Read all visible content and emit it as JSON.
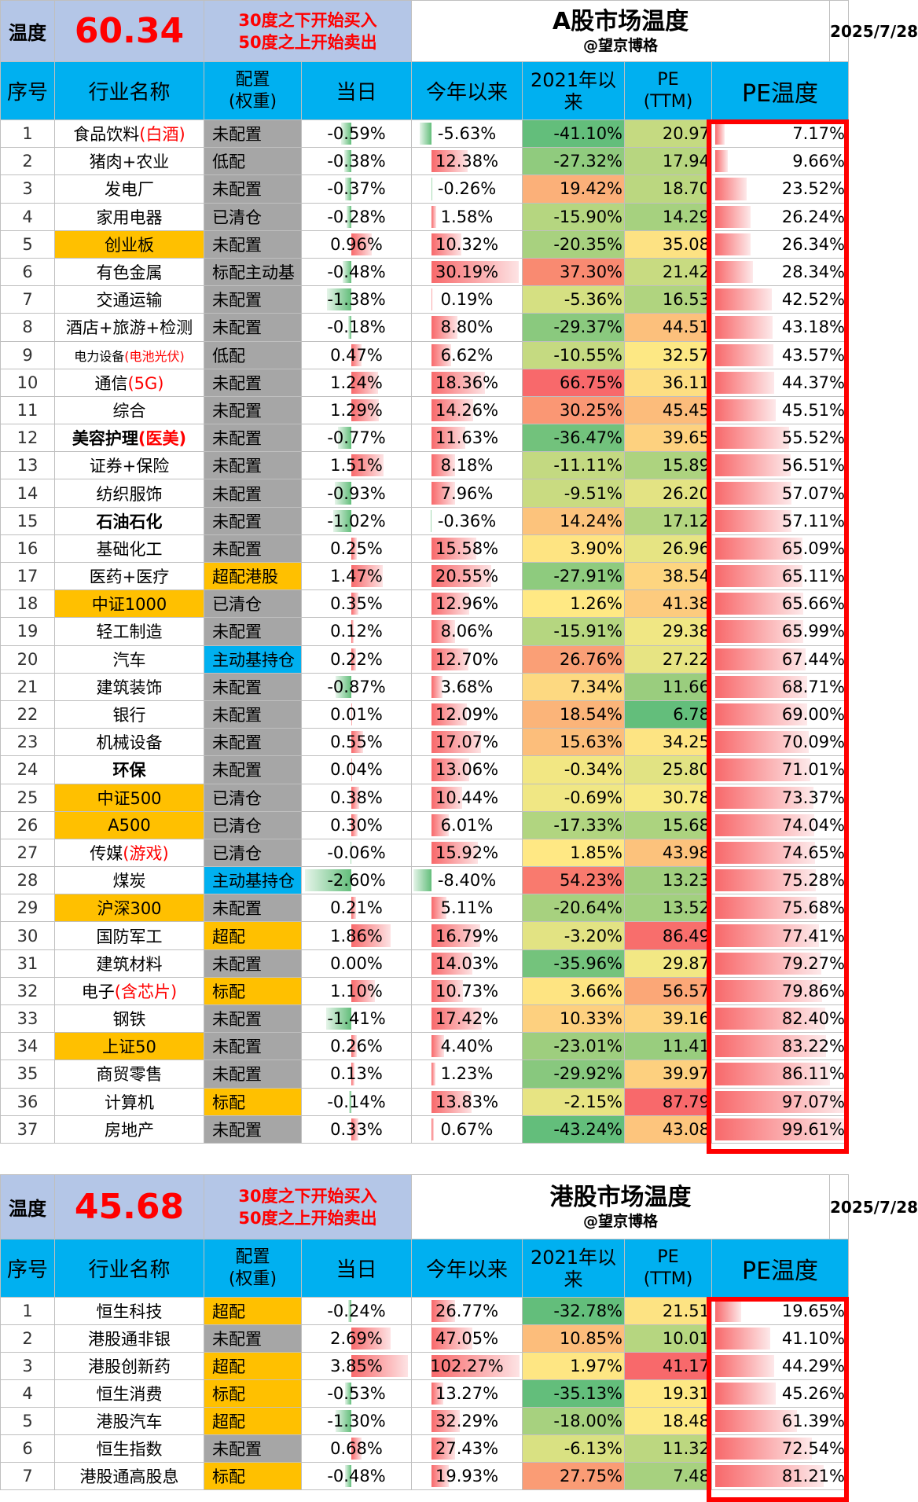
{
  "sections": [
    {
      "top": {
        "temp_label": "温度",
        "temp_value": "60.34",
        "note_line1": "30度之下开始买入",
        "note_line2": "50度之上开始卖出",
        "title": "A股市场温度",
        "subtitle": "@望京博格",
        "date": "2025/7/28"
      },
      "headers": {
        "idx": "序号",
        "name": "行业名称",
        "alloc": "配置\n(权重)",
        "day": "当日",
        "ytd": "今年以来",
        "y2021": "2021年以来",
        "pe": "PE\n(TTM)",
        "pe_temp": "PE温度"
      },
      "rows": [
        {
          "idx": "1",
          "name": "食品饮料",
          "name_red": "(白酒)",
          "alloc": "未配置",
          "day": "-0.59%",
          "day_v": -0.59,
          "ytd": "-5.63%",
          "ytd_v": -5.63,
          "y2021": "-41.10%",
          "y2021_c": "#63be7b",
          "pe": "20.97",
          "pe_c": "#c5da81",
          "pet": "7.17%",
          "pet_v": 7.17
        },
        {
          "idx": "2",
          "name": "猪肉+农业",
          "alloc": "低配",
          "day": "-0.38%",
          "day_v": -0.38,
          "ytd": "12.38%",
          "ytd_v": 12.38,
          "y2021": "-27.32%",
          "y2021_c": "#90cb7e",
          "pe": "17.94",
          "pe_c": "#b7d680",
          "pet": "9.66%",
          "pet_v": 9.66
        },
        {
          "idx": "3",
          "name": "发电厂",
          "alloc": "未配置",
          "day": "-0.37%",
          "day_v": -0.37,
          "ytd": "-0.26%",
          "ytd_v": -0.26,
          "y2021": "19.42%",
          "y2021_c": "#fbb079",
          "pe": "18.70",
          "pe_c": "#bbd780",
          "pet": "23.52%",
          "pet_v": 23.52
        },
        {
          "idx": "4",
          "name": "家用电器",
          "alloc": "已清仓",
          "day": "-0.28%",
          "day_v": -0.28,
          "ytd": "1.58%",
          "ytd_v": 1.58,
          "y2021": "-15.90%",
          "y2021_c": "#b5d680",
          "pe": "14.29",
          "pe_c": "#a6d17f",
          "pet": "26.24%",
          "pet_v": 26.24
        },
        {
          "idx": "5",
          "name": "创业板",
          "hl": true,
          "alloc": "未配置",
          "day": "0.96%",
          "day_v": 0.96,
          "ytd": "10.32%",
          "ytd_v": 10.32,
          "y2021": "-20.35%",
          "y2021_c": "#a8d17f",
          "pe": "35.08",
          "pe_c": "#fde283",
          "pet": "26.34%",
          "pet_v": 26.34
        },
        {
          "idx": "6",
          "name": "有色金属",
          "alloc": "标配主动基",
          "day": "-0.48%",
          "day_v": -0.48,
          "ytd": "30.19%",
          "ytd_v": 30.19,
          "y2021": "37.30%",
          "y2021_c": "#f98a71",
          "pe": "21.42",
          "pe_c": "#c8db81",
          "pet": "28.34%",
          "pet_v": 28.34
        },
        {
          "idx": "7",
          "name": "交通运输",
          "alloc": "未配置",
          "day": "-1.38%",
          "day_v": -1.38,
          "ytd": "0.19%",
          "ytd_v": 0.19,
          "y2021": "-5.36%",
          "y2021_c": "#d5e082",
          "pe": "16.53",
          "pe_c": "#b0d47f",
          "pet": "42.52%",
          "pet_v": 42.52
        },
        {
          "idx": "8",
          "name": "酒店+旅游+检测",
          "alloc": "未配置",
          "day": "-0.18%",
          "day_v": -0.18,
          "ytd": "8.80%",
          "ytd_v": 8.8,
          "y2021": "-29.37%",
          "y2021_c": "#8ac97e",
          "pe": "44.51",
          "pe_c": "#fcc07c",
          "pet": "43.18%",
          "pet_v": 43.18
        },
        {
          "idx": "9",
          "name": "电力设备",
          "name_red": "(电池光伏)",
          "tiny": true,
          "alloc": "低配",
          "day": "0.47%",
          "day_v": 0.47,
          "ytd": "6.62%",
          "ytd_v": 6.62,
          "y2021": "-10.55%",
          "y2021_c": "#c5da81",
          "pe": "32.57",
          "pe_c": "#fde884",
          "pet": "43.57%",
          "pet_v": 43.57
        },
        {
          "idx": "10",
          "name": "通信",
          "name_red": "(5G)",
          "alloc": "未配置",
          "day": "1.24%",
          "day_v": 1.24,
          "ytd": "18.36%",
          "ytd_v": 18.36,
          "y2021": "66.75%",
          "y2021_c": "#f8696b",
          "pe": "36.11",
          "pe_c": "#fdde82",
          "pet": "44.37%",
          "pet_v": 44.37
        },
        {
          "idx": "11",
          "name": "综合",
          "alloc": "未配置",
          "day": "1.29%",
          "day_v": 1.29,
          "ytd": "14.26%",
          "ytd_v": 14.26,
          "y2021": "30.25%",
          "y2021_c": "#fa9774",
          "pe": "45.45",
          "pe_c": "#fcbc7b",
          "pet": "45.51%",
          "pet_v": 45.51
        },
        {
          "idx": "12",
          "name": "美容护理",
          "name_red": "(医美)",
          "bold": true,
          "alloc": "未配置",
          "day": "-0.77%",
          "day_v": -0.77,
          "ytd": "11.63%",
          "ytd_v": 11.63,
          "y2021": "-36.47%",
          "y2021_c": "#72c27c",
          "pe": "39.65",
          "pe_c": "#fdd17f",
          "pet": "55.52%",
          "pet_v": 55.52
        },
        {
          "idx": "13",
          "name": "证券+保险",
          "alloc": "未配置",
          "day": "1.51%",
          "day_v": 1.51,
          "ytd": "8.18%",
          "ytd_v": 8.18,
          "y2021": "-11.11%",
          "y2021_c": "#c3d981",
          "pe": "15.89",
          "pe_c": "#add37f",
          "pet": "56.51%",
          "pet_v": 56.51
        },
        {
          "idx": "14",
          "name": "纺织服饰",
          "alloc": "未配置",
          "day": "-0.93%",
          "day_v": -0.93,
          "ytd": "7.96%",
          "ytd_v": 7.96,
          "y2021": "-9.51%",
          "y2021_c": "#c9db81",
          "pe": "26.20",
          "pe_c": "#e3e383",
          "pet": "57.07%",
          "pet_v": 57.07
        },
        {
          "idx": "15",
          "name": "石油石化",
          "bold": true,
          "alloc": "未配置",
          "day": "-1.02%",
          "day_v": -1.02,
          "ytd": "-0.36%",
          "ytd_v": -0.36,
          "y2021": "14.24%",
          "y2021_c": "#fcc37c",
          "pe": "17.12",
          "pe_c": "#b3d580",
          "pet": "57.11%",
          "pet_v": 57.11
        },
        {
          "idx": "16",
          "name": "基础化工",
          "alloc": "未配置",
          "day": "0.25%",
          "day_v": 0.25,
          "ytd": "15.58%",
          "ytd_v": 15.58,
          "y2021": "3.90%",
          "y2021_c": "#fee482",
          "pe": "26.96",
          "pe_c": "#e6e483",
          "pet": "65.09%",
          "pet_v": 65.09
        },
        {
          "idx": "17",
          "name": "医药+医疗",
          "alloc": "超配港股",
          "alloc_c": "orange",
          "day": "1.47%",
          "day_v": 1.47,
          "ytd": "20.55%",
          "ytd_v": 20.55,
          "y2021": "-27.91%",
          "y2021_c": "#8ecb7e",
          "pe": "38.54",
          "pe_c": "#fdd580",
          "pet": "65.11%",
          "pet_v": 65.11
        },
        {
          "idx": "18",
          "name": "中证1000",
          "hl": true,
          "alloc": "已清仓",
          "day": "0.35%",
          "day_v": 0.35,
          "ytd": "12.96%",
          "ytd_v": 12.96,
          "y2021": "1.26%",
          "y2021_c": "#ffe984",
          "pe": "41.38",
          "pe_c": "#fdcb7e",
          "pet": "65.66%",
          "pet_v": 65.66
        },
        {
          "idx": "19",
          "name": "轻工制造",
          "alloc": "未配置",
          "day": "0.12%",
          "day_v": 0.12,
          "ytd": "8.06%",
          "ytd_v": 8.06,
          "y2021": "-15.91%",
          "y2021_c": "#b5d680",
          "pe": "29.38",
          "pe_c": "#f0e784",
          "pet": "65.99%",
          "pet_v": 65.99
        },
        {
          "idx": "20",
          "name": "汽车",
          "alloc": "主动基持仓",
          "alloc_c": "blue",
          "day": "0.22%",
          "day_v": 0.22,
          "ytd": "12.70%",
          "ytd_v": 12.7,
          "y2021": "26.76%",
          "y2021_c": "#fa9f76",
          "pe": "27.22",
          "pe_c": "#e7e483",
          "pet": "67.44%",
          "pet_v": 67.44
        },
        {
          "idx": "21",
          "name": "建筑装饰",
          "alloc": "未配置",
          "day": "-0.87%",
          "day_v": -0.87,
          "ytd": "3.68%",
          "ytd_v": 3.68,
          "y2021": "7.34%",
          "y2021_c": "#fdd981",
          "pe": "11.66",
          "pe_c": "#9acd7e",
          "pet": "68.71%",
          "pet_v": 68.71
        },
        {
          "idx": "22",
          "name": "银行",
          "alloc": "未配置",
          "day": "0.01%",
          "day_v": 0.01,
          "ytd": "12.09%",
          "ytd_v": 12.09,
          "y2021": "18.54%",
          "y2021_c": "#fbb479",
          "pe": "6.78",
          "pe_c": "#63be7b",
          "pet": "69.00%",
          "pet_v": 69.0
        },
        {
          "idx": "23",
          "name": "机械设备",
          "alloc": "未配置",
          "day": "0.55%",
          "day_v": 0.55,
          "ytd": "17.07%",
          "ytd_v": 17.07,
          "y2021": "15.63%",
          "y2021_c": "#fcbe7b",
          "pe": "34.25",
          "pe_c": "#fde483",
          "pet": "70.09%",
          "pet_v": 70.09
        },
        {
          "idx": "24",
          "name": "环保",
          "bold": true,
          "alloc": "未配置",
          "day": "0.04%",
          "day_v": 0.04,
          "ytd": "13.06%",
          "ytd_v": 13.06,
          "y2021": "-0.34%",
          "y2021_c": "#f2e783",
          "pe": "25.80",
          "pe_c": "#e1e383",
          "pet": "71.01%",
          "pet_v": 71.01
        },
        {
          "idx": "25",
          "name": "中证500",
          "hl": true,
          "alloc": "已清仓",
          "day": "0.38%",
          "day_v": 0.38,
          "ytd": "10.44%",
          "ytd_v": 10.44,
          "y2021": "-0.69%",
          "y2021_c": "#f0e784",
          "pe": "30.78",
          "pe_c": "#f7e984",
          "pet": "73.37%",
          "pet_v": 73.37
        },
        {
          "idx": "26",
          "name": "A500",
          "hl": true,
          "alloc": "已清仓",
          "day": "0.30%",
          "day_v": 0.3,
          "ytd": "6.01%",
          "ytd_v": 6.01,
          "y2021": "-17.33%",
          "y2021_c": "#b1d580",
          "pe": "15.68",
          "pe_c": "#acd37f",
          "pet": "74.04%",
          "pet_v": 74.04
        },
        {
          "idx": "27",
          "name": "传媒",
          "name_red": "(游戏)",
          "alloc": "已清仓",
          "day": "-0.06%",
          "day_v": -0.06,
          "ytd": "15.92%",
          "ytd_v": 15.92,
          "y2021": "1.85%",
          "y2021_c": "#ffe884",
          "pe": "43.98",
          "pe_c": "#fcc27c",
          "pet": "74.65%",
          "pet_v": 74.65
        },
        {
          "idx": "28",
          "name": "煤炭",
          "alloc": "主动基持仓",
          "alloc_c": "blue",
          "day": "-2.60%",
          "day_v": -2.6,
          "ytd": "-8.40%",
          "ytd_v": -8.4,
          "y2021": "54.23%",
          "y2021_c": "#f97a6e",
          "pe": "13.23",
          "pe_c": "#a1cf7e",
          "pet": "75.28%",
          "pet_v": 75.28
        },
        {
          "idx": "29",
          "name": "沪深300",
          "hl": true,
          "alloc": "未配置",
          "day": "0.21%",
          "day_v": 0.21,
          "ytd": "5.11%",
          "ytd_v": 5.11,
          "y2021": "-20.64%",
          "y2021_c": "#a7d17f",
          "pe": "13.52",
          "pe_c": "#a2d07f",
          "pet": "75.68%",
          "pet_v": 75.68
        },
        {
          "idx": "30",
          "name": "国防军工",
          "alloc": "超配",
          "alloc_c": "orange",
          "day": "1.86%",
          "day_v": 1.86,
          "ytd": "16.79%",
          "ytd_v": 16.79,
          "y2021": "-3.20%",
          "y2021_c": "#e2e383",
          "pe": "86.49",
          "pe_c": "#f86e6c",
          "pet": "77.41%",
          "pet_v": 77.41
        },
        {
          "idx": "31",
          "name": "建筑材料",
          "alloc": "未配置",
          "day": "0.00%",
          "day_v": 0,
          "ytd": "14.03%",
          "ytd_v": 14.03,
          "y2021": "-35.96%",
          "y2021_c": "#74c37c",
          "pe": "29.87",
          "pe_c": "#f2e884",
          "pet": "79.27%",
          "pet_v": 79.27
        },
        {
          "idx": "32",
          "name": "电子",
          "name_red": "(含芯片)",
          "alloc": "标配",
          "alloc_c": "orange",
          "day": "1.10%",
          "day_v": 1.1,
          "ytd": "10.73%",
          "ytd_v": 10.73,
          "y2021": "3.66%",
          "y2021_c": "#fee482",
          "pe": "56.57",
          "pe_c": "#fba777",
          "pet": "79.86%",
          "pet_v": 79.86
        },
        {
          "idx": "33",
          "name": "钢铁",
          "alloc": "未配置",
          "day": "-1.41%",
          "day_v": -1.41,
          "ytd": "17.42%",
          "ytd_v": 17.42,
          "y2021": "10.33%",
          "y2021_c": "#fdd07f",
          "pe": "39.16",
          "pe_c": "#fdd37f",
          "pet": "82.40%",
          "pet_v": 82.4
        },
        {
          "idx": "34",
          "name": "上证50",
          "hl": true,
          "alloc": "未配置",
          "day": "0.26%",
          "day_v": 0.26,
          "ytd": "4.40%",
          "ytd_v": 4.4,
          "y2021": "-23.01%",
          "y2021_c": "#9ece7e",
          "pe": "11.41",
          "pe_c": "#99cd7e",
          "pet": "83.22%",
          "pet_v": 83.22
        },
        {
          "idx": "35",
          "name": "商贸零售",
          "alloc": "未配置",
          "day": "0.13%",
          "day_v": 0.13,
          "ytd": "1.23%",
          "ytd_v": 1.23,
          "y2021": "-29.92%",
          "y2021_c": "#88c87e",
          "pe": "39.97",
          "pe_c": "#fdd07f",
          "pet": "86.11%",
          "pet_v": 86.11
        },
        {
          "idx": "36",
          "name": "计算机",
          "alloc": "标配",
          "alloc_c": "orange",
          "day": "-0.14%",
          "day_v": -0.14,
          "ytd": "13.83%",
          "ytd_v": 13.83,
          "y2021": "-2.15%",
          "y2021_c": "#e7e483",
          "pe": "87.79",
          "pe_c": "#f8696b",
          "pet": "97.07%",
          "pet_v": 97.07
        },
        {
          "idx": "37",
          "name": "房地产",
          "alloc": "未配置",
          "day": "0.33%",
          "day_v": 0.33,
          "ytd": "0.67%",
          "ytd_v": 0.67,
          "y2021": "-43.24%",
          "y2021_c": "#63be7b",
          "pe": "43.08",
          "pe_c": "#fdc57d",
          "pet": "99.61%",
          "pet_v": 99.61
        }
      ]
    },
    {
      "top": {
        "temp_label": "温度",
        "temp_value": "45.68",
        "note_line1": "30度之下开始买入",
        "note_line2": "50度之上开始卖出",
        "title": "港股市场温度",
        "subtitle": "@望京博格",
        "date": "2025/7/28"
      },
      "headers": {
        "idx": "序号",
        "name": "行业名称",
        "alloc": "配置\n(权重)",
        "day": "当日",
        "ytd": "今年以来",
        "y2021": "2021年以来",
        "pe": "PE\n(TTM)",
        "pe_temp": "PE温度"
      },
      "rows": [
        {
          "idx": "1",
          "name": "恒生科技",
          "alloc": "超配",
          "alloc_c": "orange",
          "day": "-0.24%",
          "day_v": -0.24,
          "ytd": "26.77%",
          "ytd_v": 26.77,
          "y2021": "-32.78%",
          "y2021_c": "#63be7b",
          "pe": "21.51",
          "pe_c": "#fde383",
          "pet": "19.65%",
          "pet_v": 19.65
        },
        {
          "idx": "2",
          "name": "港股通非银",
          "alloc": "未配置",
          "day": "2.69%",
          "day_v": 2.69,
          "ytd": "47.05%",
          "ytd_v": 47.05,
          "y2021": "10.85%",
          "y2021_c": "#fcbd7b",
          "pe": "10.01",
          "pe_c": "#b6d680",
          "pet": "41.10%",
          "pet_v": 41.1
        },
        {
          "idx": "3",
          "name": "港股创新药",
          "alloc": "超配",
          "alloc_c": "orange",
          "day": "3.85%",
          "day_v": 3.85,
          "ytd": "102.27%",
          "ytd_v": 102.27,
          "y2021": "1.97%",
          "y2021_c": "#fee683",
          "pe": "41.17",
          "pe_c": "#f8696b",
          "pet": "44.29%",
          "pet_v": 44.29
        },
        {
          "idx": "4",
          "name": "恒生消费",
          "alloc": "标配",
          "alloc_c": "orange",
          "day": "-0.53%",
          "day_v": -0.53,
          "ytd": "13.27%",
          "ytd_v": 13.27,
          "y2021": "-35.13%",
          "y2021_c": "#63be7b",
          "pe": "19.31",
          "pe_c": "#fee884",
          "pet": "45.26%",
          "pet_v": 45.26
        },
        {
          "idx": "5",
          "name": "港股汽车",
          "alloc": "超配",
          "alloc_c": "orange",
          "day": "-1.30%",
          "day_v": -1.3,
          "ytd": "32.29%",
          "ytd_v": 32.29,
          "y2021": "-18.00%",
          "y2021_c": "#a7d17f",
          "pe": "18.48",
          "pe_c": "#fce984",
          "pet": "61.39%",
          "pet_v": 61.39
        },
        {
          "idx": "6",
          "name": "恒生指数",
          "alloc": "未配置",
          "day": "0.68%",
          "day_v": 0.68,
          "ytd": "27.43%",
          "ytd_v": 27.43,
          "y2021": "-6.13%",
          "y2021_c": "#d9e182",
          "pe": "11.32",
          "pe_c": "#bcd780",
          "pet": "72.54%",
          "pet_v": 72.54
        },
        {
          "idx": "7",
          "name": "港股通高股息",
          "alloc": "标配",
          "alloc_c": "orange",
          "day": "-0.48%",
          "day_v": -0.48,
          "ytd": "19.93%",
          "ytd_v": 19.93,
          "y2021": "27.75%",
          "y2021_c": "#fa9c75",
          "pe": "7.48",
          "pe_c": "#a7d17f",
          "pet": "81.21%",
          "pet_v": 81.21
        }
      ]
    }
  ]
}
